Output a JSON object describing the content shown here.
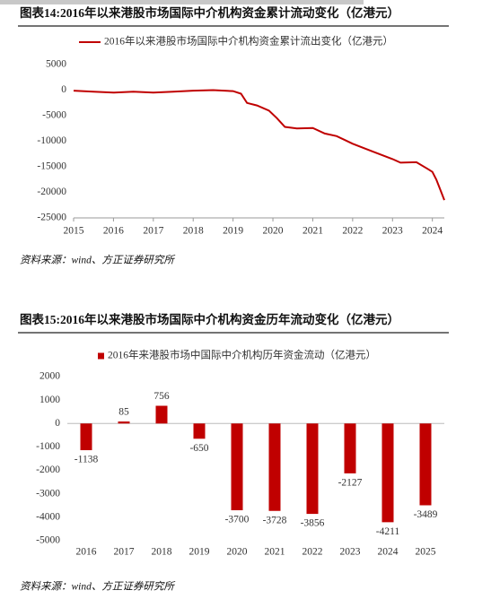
{
  "chart_data": [
    {
      "type": "line",
      "title": "图表14:2016年以来港股市场国际中介机构资金累计流动变化（亿港元）",
      "source": "资料来源：wind、方正证券研究所",
      "x": [
        2015.0,
        2015.5,
        2016.0,
        2016.5,
        2017.0,
        2017.5,
        2018.0,
        2018.5,
        2019.0,
        2019.2,
        2019.35,
        2019.6,
        2019.9,
        2020.1,
        2020.3,
        2020.6,
        2021.0,
        2021.3,
        2021.6,
        2022.0,
        2022.5,
        2023.0,
        2023.2,
        2023.6,
        2023.9,
        2024.0,
        2024.1,
        2024.2,
        2024.3
      ],
      "series": [
        {
          "name": "2016年以来港股市场国际中介机构资金累计流出变化（亿港元）",
          "color": "#c00000",
          "values": [
            -100,
            -300,
            -500,
            -300,
            -500,
            -300,
            -100,
            0,
            -200,
            -700,
            -2500,
            -3000,
            -4000,
            -5500,
            -7200,
            -7500,
            -7400,
            -8500,
            -9000,
            -10500,
            -12000,
            -13500,
            -14200,
            -14100,
            -15500,
            -16000,
            -17500,
            -19500,
            -21500
          ]
        }
      ],
      "xlim": [
        2015,
        2024.3
      ],
      "xticks": [
        2015,
        2016,
        2017,
        2018,
        2019,
        2020,
        2021,
        2022,
        2023,
        2024
      ],
      "ylim": [
        -25000,
        5000
      ],
      "yticks": [
        -25000,
        -20000,
        -15000,
        -10000,
        -5000,
        0,
        5000
      ]
    },
    {
      "type": "bar",
      "title": "图表15:2016年以来港股市场国际中介机构资金历年流动变化（亿港元）",
      "source": "资料来源：wind、方正证券研究所",
      "categories": [
        "2016",
        "2017",
        "2018",
        "2019",
        "2020",
        "2021",
        "2022",
        "2023",
        "2024",
        "2025"
      ],
      "series": [
        {
          "name": "2016年来港股市场中国际中介机构历年资金流动（亿港元）",
          "color": "#c00000",
          "values": [
            -1138,
            85,
            756,
            -650,
            -3700,
            -3728,
            -3856,
            -2127,
            -4211,
            -3489
          ]
        }
      ],
      "ylim": [
        -5000,
        2000
      ],
      "yticks": [
        -5000,
        -4000,
        -3000,
        -2000,
        -1000,
        0,
        1000,
        2000
      ]
    }
  ]
}
